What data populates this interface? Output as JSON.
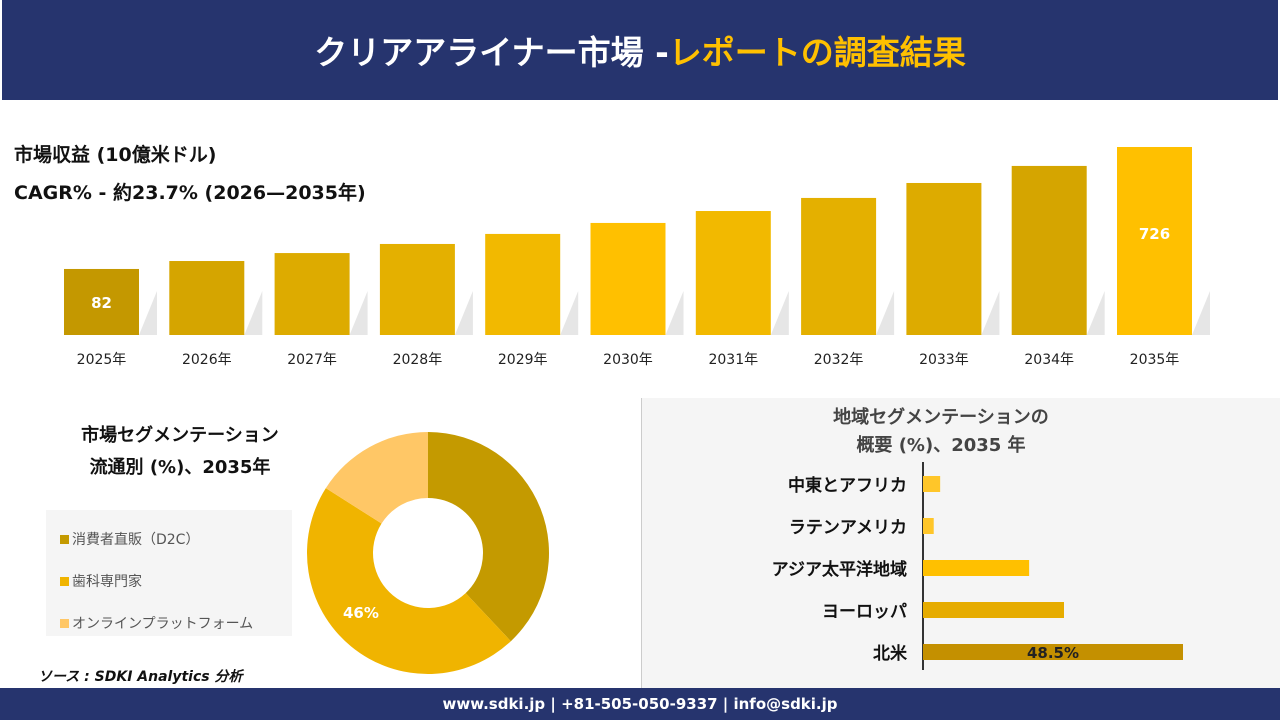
{
  "header": {
    "title_main": "クリアアライナー市場 -",
    "title_highlight": "レポートの調査結果"
  },
  "revenue": {
    "title": "市場収益 (10億米ドル)",
    "cagr": "CAGR% - 約23.7% (2026—2035年)"
  },
  "segment": {
    "title_line1": "市場セグメンテーション",
    "title_line2": "流通別 (%)、2035年"
  },
  "region": {
    "title_line1": "地域セグメンテーションの",
    "title_line2": "概要 (%)、2035 年"
  },
  "source": "ソース : SDKI Analytics 分析",
  "footer": "www.sdki.jp | +81-505-050-9337 | info@sdki.jp",
  "chart_data": [
    {
      "type": "bar",
      "title": "市場収益 (10億米ドル)",
      "categories": [
        "2025年",
        "2026年",
        "2027年",
        "2028年",
        "2029年",
        "2030年",
        "2031年",
        "2032年",
        "2033年",
        "2034年",
        "2035年"
      ],
      "values": [
        82,
        124,
        166,
        214,
        267,
        325,
        388,
        457,
        536,
        626,
        726
      ],
      "data_labels": {
        "0": "82",
        "10": "726"
      },
      "colors": [
        "#c49800",
        "#d5a500",
        "#ddab00",
        "#e4b000",
        "#f2b900",
        "#ffc000",
        "#f2b900",
        "#e4b000",
        "#ddab00",
        "#d5a500",
        "#ffc000"
      ]
    },
    {
      "type": "pie",
      "variant": "donut",
      "labels": [
        "消費者直販（D2C）",
        "歯科専門家",
        "オンラインプラットフォーム"
      ],
      "values": [
        38,
        46,
        16
      ],
      "data_labels": {
        "1": "46%"
      },
      "colors": [
        "#c49a00",
        "#f0b400",
        "#ffc766"
      ]
    },
    {
      "type": "bar",
      "orientation": "horizontal",
      "categories": [
        "中東とアフリカ",
        "ラテンアメリカ",
        "アジア太平洋地域",
        "ヨーロッパ",
        "北米"
      ],
      "values": [
        3.2,
        2.0,
        19.8,
        26.3,
        48.5
      ],
      "data_labels": {
        "4": "48.5%"
      },
      "colors": [
        "#ffc629",
        "#ffc629",
        "#ffc000",
        "#e6ac00",
        "#c49000"
      ]
    }
  ]
}
